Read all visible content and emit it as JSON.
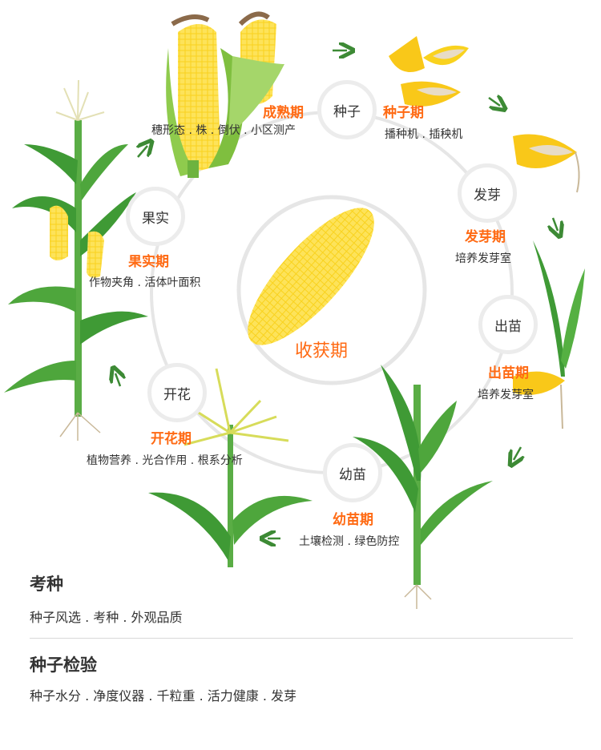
{
  "center": {
    "label": "收获期"
  },
  "stages": [
    {
      "node": "种子",
      "stage": "种子期",
      "desc": "播种机 . 插秧机"
    },
    {
      "node": "发芽",
      "stage": "发芽期",
      "desc": "培养发芽室"
    },
    {
      "node": "出苗",
      "stage": "出苗期",
      "desc": "培养发芽室"
    },
    {
      "node": "幼苗",
      "stage": "幼苗期",
      "desc": "土壤检测 . 绿色防控"
    },
    {
      "node": "开花",
      "stage": "开花期",
      "desc": "植物营养 . 光合作用 . 根系分析"
    },
    {
      "node": "果实",
      "stage": "果实期",
      "desc": "作物夹角 . 活体叶面积"
    },
    {
      "stage": "成熟期",
      "desc": "穗形态 . 株 . 倒伏 . 小区测产"
    }
  ],
  "sections": [
    {
      "title": "考种",
      "desc": "种子风选 . 考种 . 外观品质"
    },
    {
      "title": "种子检验",
      "desc": "种子水分 . 净度仪器 . 千粒重 . 活力健康 . 发芽"
    }
  ],
  "colors": {
    "accent": "#ff6a13",
    "leaf": "#3f9a35",
    "corn": "#f7c81a",
    "ring": "#e6e6e6"
  }
}
